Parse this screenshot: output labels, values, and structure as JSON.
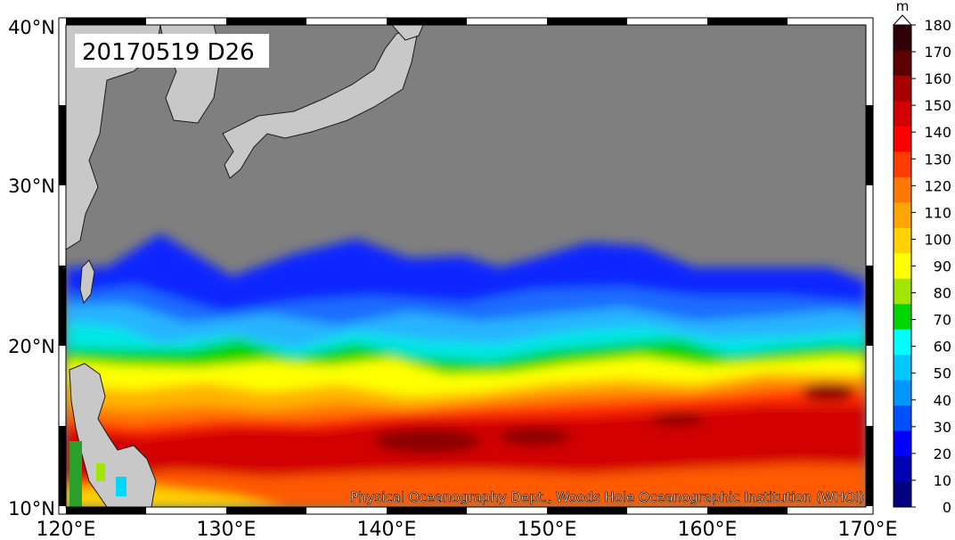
{
  "map": {
    "date_label": "20170519 D26",
    "credit": "Physical Oceanography Dept., Woods Hole Oceanographic Institution (WHOI)",
    "lat_ticks": [
      "40°N",
      "30°N",
      "20°N",
      "10°N"
    ],
    "lon_ticks": [
      "120°E",
      "130°E",
      "140°E",
      "150°E",
      "160°E",
      "170°E"
    ],
    "land_color": "#c8c8c8",
    "nodata_color": "#7f7f7f"
  },
  "colorbar": {
    "unit": "m",
    "ticks": [
      "180",
      "170",
      "160",
      "150",
      "140",
      "130",
      "120",
      "110",
      "100",
      "90",
      "80",
      "70",
      "60",
      "50",
      "40",
      "30",
      "20",
      "10",
      "0"
    ],
    "colors": [
      "#2e0008",
      "#5c0000",
      "#a80000",
      "#d20000",
      "#ff0000",
      "#ff3c00",
      "#ff7800",
      "#ffa500",
      "#ffd200",
      "#ffff00",
      "#a0e600",
      "#00d700",
      "#00ffff",
      "#00c8ff",
      "#0096ff",
      "#0050ff",
      "#0000ff",
      "#0000b4",
      "#000080"
    ]
  }
}
